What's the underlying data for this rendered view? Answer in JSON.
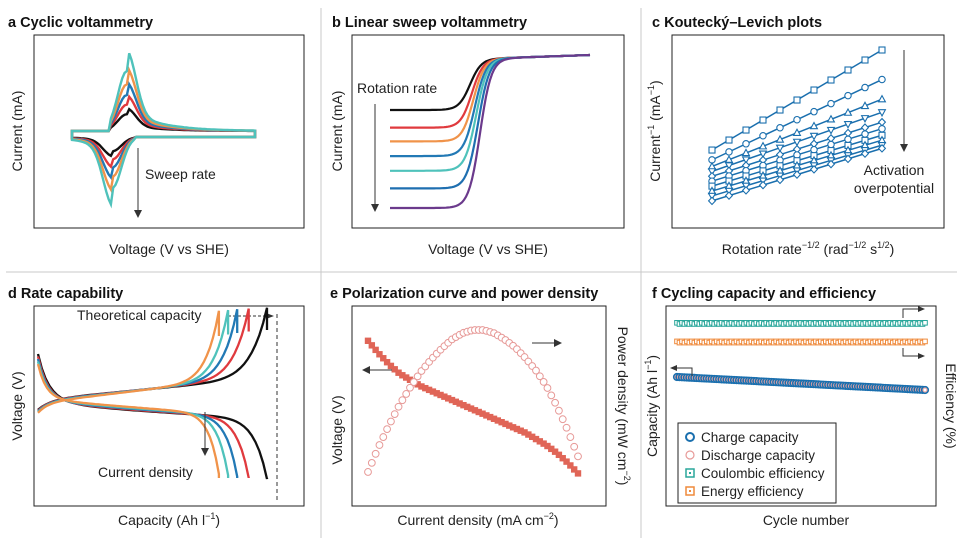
{
  "chart_data": [
    {
      "type": "line",
      "panel": "a",
      "title": "Cyclic voltammetry",
      "xlabel": "Voltage (V vs SHE)",
      "ylabel": "Current (mA)",
      "annotation": "Sweep rate",
      "series": [
        {
          "color": "#111111",
          "peak": 0.14
        },
        {
          "color": "#e03a3e",
          "peak": 0.22
        },
        {
          "color": "#2279b5",
          "peak": 0.3
        },
        {
          "color": "#f0934a",
          "peak": 0.39
        },
        {
          "color": "#4fc2bb",
          "peak": 0.5
        }
      ]
    },
    {
      "type": "line",
      "panel": "b",
      "title": "Linear sweep voltammetry",
      "xlabel": "Voltage (V vs SHE)",
      "ylabel": "Current (mA)",
      "annotation": "Rotation rate",
      "series": [
        {
          "color": "#111111",
          "plateau": 0.0
        },
        {
          "color": "#e03a3e",
          "plateau": 0.18
        },
        {
          "color": "#f0934a",
          "plateau": 0.32
        },
        {
          "color": "#2279b5",
          "plateau": 0.47
        },
        {
          "color": "#4fc2bb",
          "plateau": 0.62
        },
        {
          "color": "#1f6fb0",
          "plateau": 0.8
        },
        {
          "color": "#6b3a8c",
          "plateau": 1.0
        }
      ]
    },
    {
      "type": "scatter",
      "panel": "c",
      "title": "Koutecký–Levich plots",
      "xlabel": "Rotation rate",
      "xlabel_sup1": "−1/2",
      "xlabel_mid": " (rad",
      "xlabel_sup2": "−1/2",
      "xlabel_mid2": " s",
      "xlabel_sup3": "1/2",
      "xlabel_end": ")",
      "ylabel": "Current",
      "ylabel_sup1": "−1",
      "ylabel_mid": " (mA",
      "ylabel_sup2": "−1",
      "ylabel_end": ")",
      "annotation_line1": "Activation",
      "annotation_line2": "overpotential",
      "color": "#1a6fae",
      "x": [
        0,
        1,
        2,
        3,
        4,
        5,
        6,
        7,
        8,
        9,
        10
      ],
      "series": [
        {
          "marker": "square",
          "y0": 0.39,
          "y1": 1.0
        },
        {
          "marker": "circle",
          "y0": 0.33,
          "y1": 0.82
        },
        {
          "marker": "triangle",
          "y0": 0.29,
          "y1": 0.7
        },
        {
          "marker": "triangle-down",
          "y0": 0.26,
          "y1": 0.62
        },
        {
          "marker": "diamond",
          "y0": 0.23,
          "y1": 0.56
        },
        {
          "marker": "circle",
          "y0": 0.2,
          "y1": 0.52
        },
        {
          "marker": "square",
          "y0": 0.17,
          "y1": 0.48
        },
        {
          "marker": "triangle",
          "y0": 0.14,
          "y1": 0.45
        },
        {
          "marker": "triangle-down",
          "y0": 0.11,
          "y1": 0.42
        },
        {
          "marker": "diamond",
          "y0": 0.08,
          "y1": 0.4
        }
      ]
    },
    {
      "type": "line",
      "panel": "d",
      "title": "Rate capability",
      "xlabel": "Capacity (Ah l",
      "xlabel_sup": "−1",
      "xlabel_end": ")",
      "ylabel": "Voltage (V)",
      "annotation_top": "Theoretical capacity",
      "annotation_bottom": "Current density",
      "series": [
        {
          "color": "#111111",
          "capacity": 1.0
        },
        {
          "color": "#e03a3e",
          "capacity": 0.92
        },
        {
          "color": "#2279b5",
          "capacity": 0.87
        },
        {
          "color": "#4fc2bb",
          "capacity": 0.83
        },
        {
          "color": "#f0934a",
          "capacity": 0.79
        }
      ]
    },
    {
      "type": "scatter",
      "panel": "e",
      "title": "Polarization curve and power density",
      "xlabel": "Current density (mA cm",
      "xlabel_sup": "−2",
      "xlabel_end": ")",
      "ylabel_left": "Voltage (V)",
      "ylabel_right": "Power density (mW cm",
      "ylabel_right_sup": "−2",
      "ylabel_right_end": ")",
      "voltage_color": "#e06557",
      "power_color": "#e79a98",
      "x": [
        0.0,
        0.05,
        0.1,
        0.15,
        0.2,
        0.25,
        0.3,
        0.35,
        0.4,
        0.45,
        0.5,
        0.55,
        0.6,
        0.65,
        0.7,
        0.75,
        0.8,
        0.85,
        0.9,
        0.95,
        1.0
      ],
      "voltage": [
        0.95,
        0.87,
        0.8,
        0.74,
        0.7,
        0.66,
        0.63,
        0.6,
        0.57,
        0.54,
        0.51,
        0.48,
        0.45,
        0.42,
        0.39,
        0.36,
        0.32,
        0.28,
        0.23,
        0.17,
        0.1
      ],
      "power": [
        0.09,
        0.25,
        0.39,
        0.52,
        0.63,
        0.73,
        0.81,
        0.88,
        0.94,
        0.98,
        1.0,
        1.0,
        0.98,
        0.94,
        0.89,
        0.82,
        0.74,
        0.64,
        0.51,
        0.36,
        0.19
      ]
    },
    {
      "type": "scatter",
      "panel": "f",
      "title": "Cycling capacity and efficiency",
      "xlabel": "Cycle number",
      "ylabel_left": "Capacity (Ah l",
      "ylabel_left_sup": "−1",
      "ylabel_left_end": ")",
      "ylabel_right": "Efficiency (%)",
      "legend_placement": "bottom-left",
      "legend": [
        {
          "label": "Charge capacity",
          "marker": "circle-bold",
          "color": "#1a6fae"
        },
        {
          "label": "Discharge capacity",
          "marker": "circle",
          "color": "#e79a98"
        },
        {
          "label": "Coulombic efficiency",
          "marker": "square-dot",
          "color": "#2aa79b"
        },
        {
          "label": "Energy efficiency",
          "marker": "square-dot",
          "color": "#ef8a3c"
        }
      ],
      "capacity_start": 0.62,
      "capacity_end": 0.58,
      "coulombic_efficiency": 0.99,
      "energy_efficiency": 0.8
    }
  ]
}
